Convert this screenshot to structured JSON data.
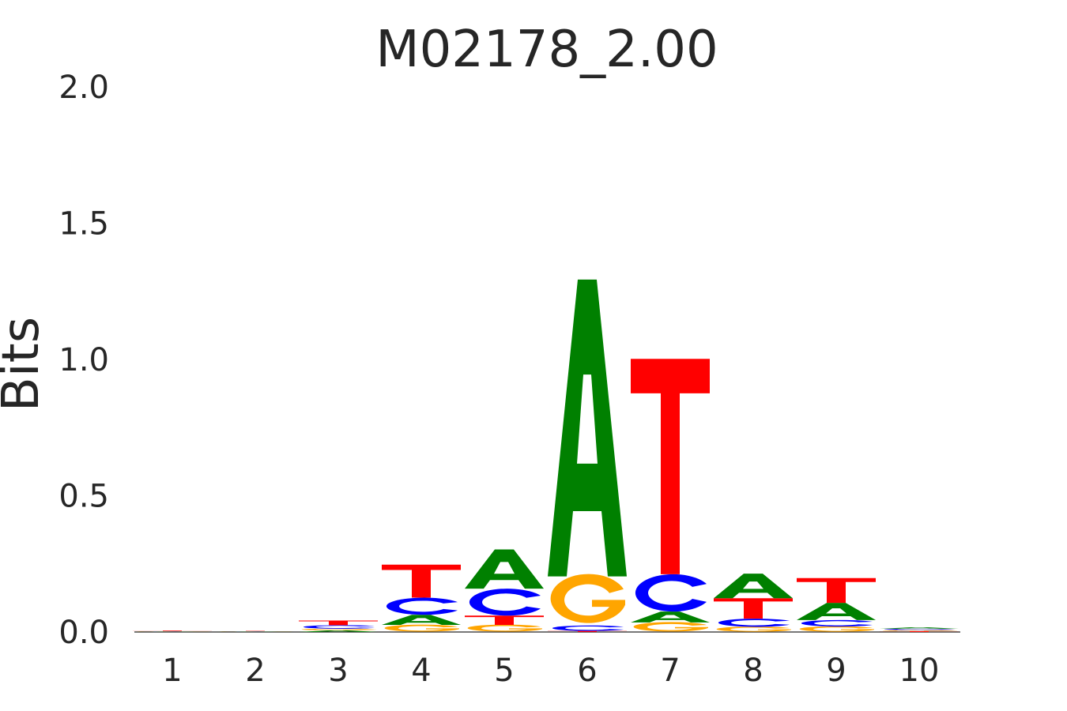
{
  "chart_data": {
    "type": "sequence-logo",
    "title": "M02178_2.00",
    "ylabel": "Bits",
    "xlabel": "",
    "ylim": [
      0,
      2.0
    ],
    "yticks": [
      "0.0",
      "0.5",
      "1.0",
      "1.5",
      "2.0"
    ],
    "ytick_values": [
      0,
      0.5,
      1.0,
      1.5,
      2.0
    ],
    "positions": [
      "1",
      "2",
      "3",
      "4",
      "5",
      "6",
      "7",
      "8",
      "9",
      "10"
    ],
    "colors": {
      "A": "#008000",
      "C": "#0000ff",
      "G": "#ffa500",
      "T": "#ff0000"
    },
    "grid": false,
    "stacks": [
      [
        {
          "base": "A",
          "height": 0.001
        },
        {
          "base": "C",
          "height": 0.001
        },
        {
          "base": "G",
          "height": 0.001
        },
        {
          "base": "T",
          "height": 0.002
        }
      ],
      [
        {
          "base": "A",
          "height": 0.001
        },
        {
          "base": "C",
          "height": 0.001
        },
        {
          "base": "G",
          "height": 0.001
        },
        {
          "base": "T",
          "height": 0.001
        }
      ],
      [
        {
          "base": "A",
          "height": 0.006
        },
        {
          "base": "G",
          "height": 0.006
        },
        {
          "base": "C",
          "height": 0.013
        },
        {
          "base": "T",
          "height": 0.017
        }
      ],
      [
        {
          "base": "G",
          "height": 0.026
        },
        {
          "base": "A",
          "height": 0.037
        },
        {
          "base": "C",
          "height": 0.063
        },
        {
          "base": "T",
          "height": 0.121
        }
      ],
      [
        {
          "base": "G",
          "height": 0.026
        },
        {
          "base": "T",
          "height": 0.034
        },
        {
          "base": "C",
          "height": 0.099
        },
        {
          "base": "A",
          "height": 0.144
        }
      ],
      [
        {
          "base": "T",
          "height": 0.004
        },
        {
          "base": "C",
          "height": 0.02
        },
        {
          "base": "G",
          "height": 0.18
        },
        {
          "base": "A",
          "height": 1.089
        }
      ],
      [
        {
          "base": "G",
          "height": 0.035
        },
        {
          "base": "A",
          "height": 0.04
        },
        {
          "base": "C",
          "height": 0.137
        },
        {
          "base": "T",
          "height": 0.79
        }
      ],
      [
        {
          "base": "G",
          "height": 0.019
        },
        {
          "base": "C",
          "height": 0.03
        },
        {
          "base": "T",
          "height": 0.075
        },
        {
          "base": "A",
          "height": 0.09
        }
      ],
      [
        {
          "base": "G",
          "height": 0.02
        },
        {
          "base": "C",
          "height": 0.024
        },
        {
          "base": "A",
          "height": 0.063
        },
        {
          "base": "T",
          "height": 0.091
        }
      ],
      [
        {
          "base": "T",
          "height": 0.003
        },
        {
          "base": "G",
          "height": 0.004
        },
        {
          "base": "C",
          "height": 0.005
        },
        {
          "base": "A",
          "height": 0.005
        }
      ]
    ]
  }
}
